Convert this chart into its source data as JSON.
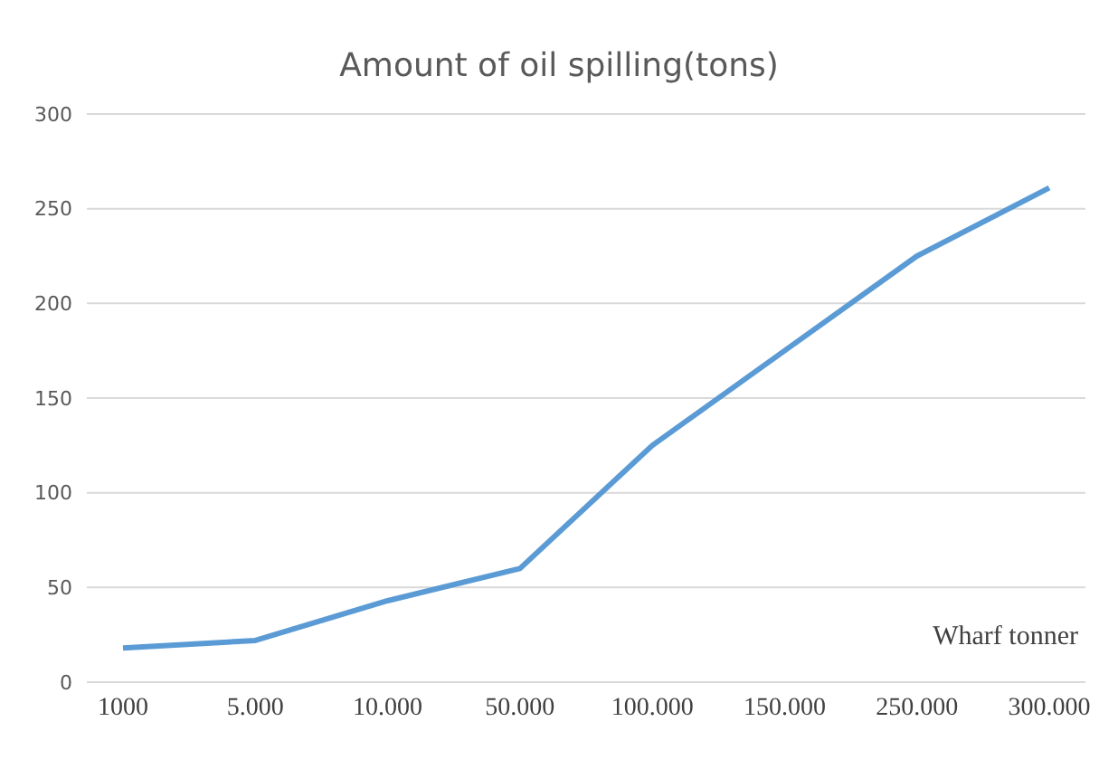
{
  "chart_data": {
    "type": "line",
    "title": "Amount of oil spilling(tons)",
    "xlabel": "Wharf tonner",
    "categories": [
      "1000",
      "5.000",
      "10.000",
      "50.000",
      "100.000",
      "150.000",
      "250.000",
      "300.000"
    ],
    "series": [
      {
        "color": "#5b9bd5",
        "values": [
          18,
          22,
          43,
          60,
          125,
          175,
          225,
          261
        ]
      }
    ],
    "ylim": [
      0,
      300
    ],
    "yticks": [
      0,
      50,
      100,
      150,
      200,
      250,
      300
    ],
    "grid": "y",
    "marker": "none",
    "line_style": "solid"
  }
}
